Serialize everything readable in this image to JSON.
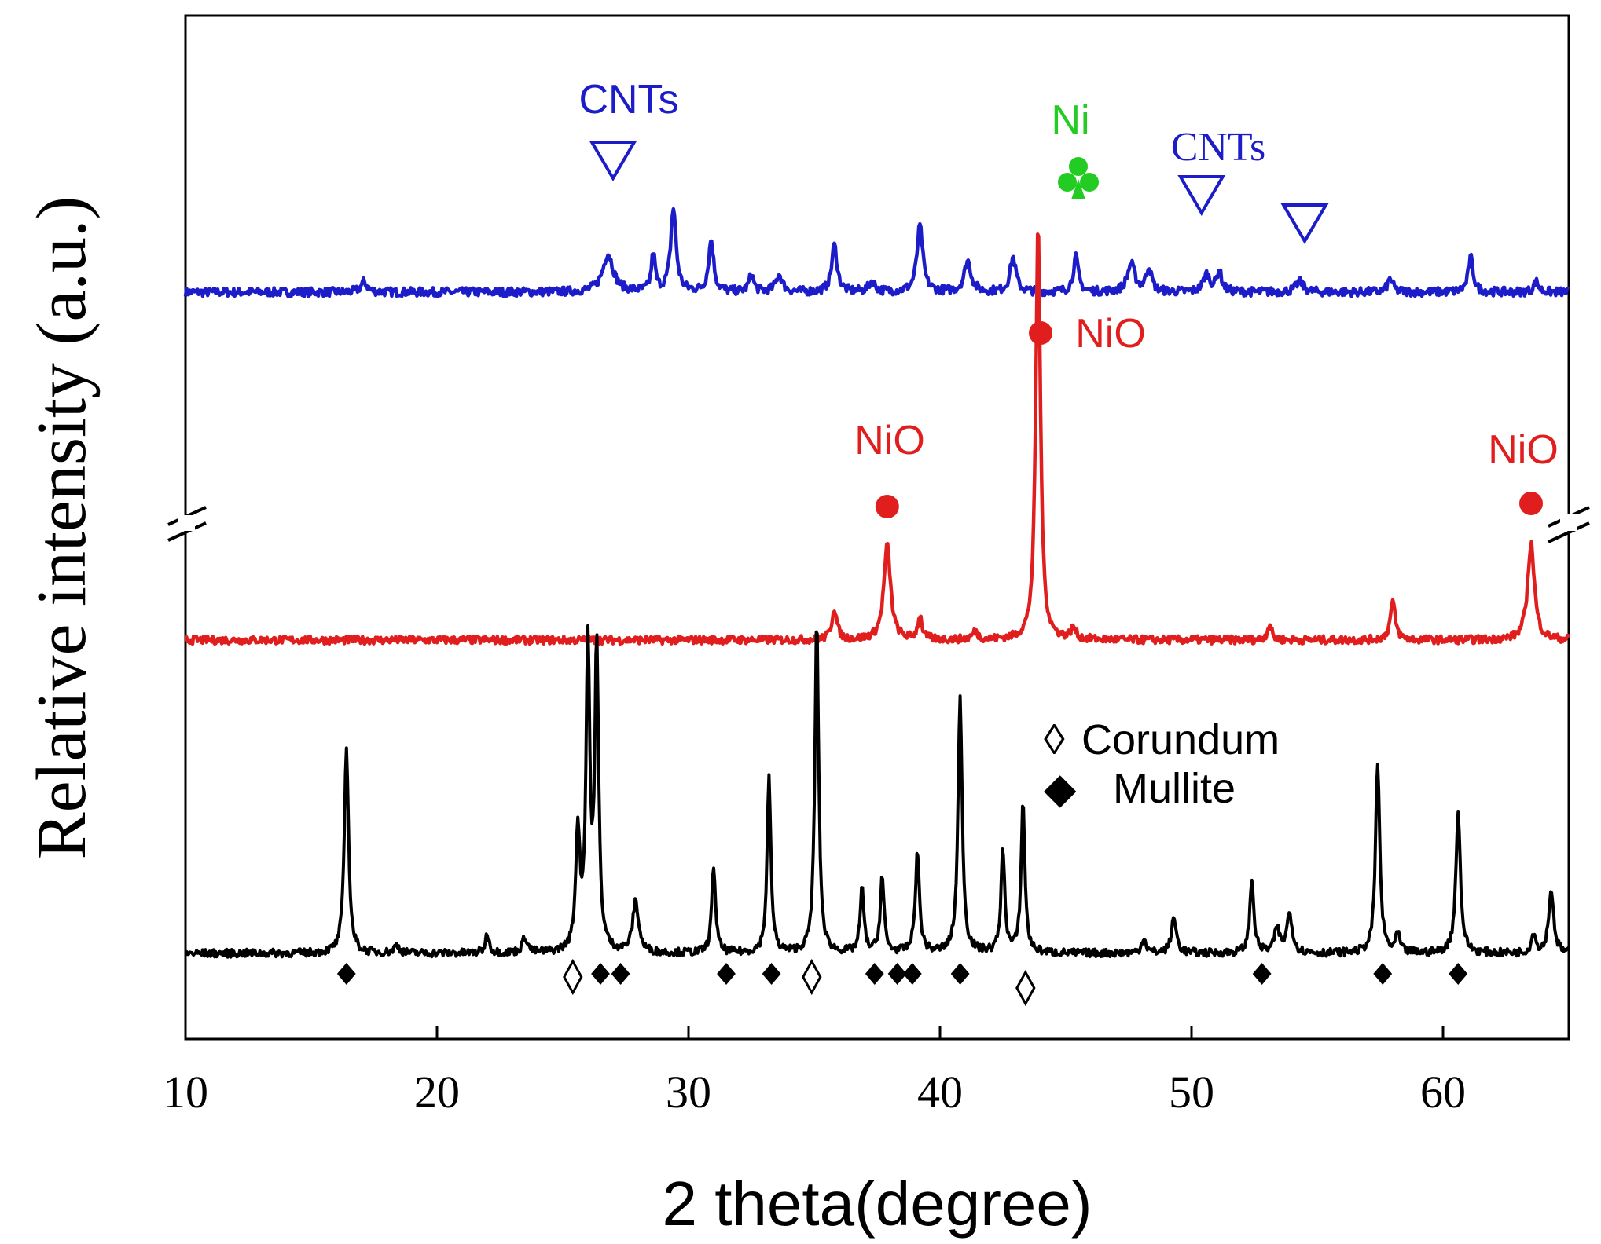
{
  "chart_data": {
    "type": "line",
    "title": "",
    "xlabel": "2 theta(degree)",
    "ylabel": "Relative intensity (a.u.)",
    "xlim": [
      10,
      65
    ],
    "xticks": [
      10,
      20,
      30,
      40,
      50,
      60
    ],
    "y_axis_break": true,
    "colors": {
      "blue": "#1c1cc8",
      "red": "#e01e1e",
      "black": "#000000",
      "green": "#22cc22"
    },
    "series": [
      {
        "name": "top",
        "color": "#1c1cc8",
        "baseline": 0,
        "peaks": [
          [
            17.1,
            0.06,
            0.15
          ],
          [
            26.8,
            0.22,
            0.25
          ],
          [
            28.6,
            0.22,
            0.09
          ],
          [
            29.4,
            0.48,
            0.13
          ],
          [
            30.9,
            0.3,
            0.12
          ],
          [
            32.5,
            0.1,
            0.11
          ],
          [
            33.6,
            0.1,
            0.15
          ],
          [
            35.8,
            0.27,
            0.13
          ],
          [
            37.3,
            0.06,
            0.15
          ],
          [
            39.2,
            0.38,
            0.14
          ],
          [
            41.1,
            0.18,
            0.16
          ],
          [
            42.9,
            0.2,
            0.14
          ],
          [
            45.4,
            0.2,
            0.12
          ],
          [
            47.6,
            0.16,
            0.18
          ],
          [
            48.3,
            0.14,
            0.13
          ],
          [
            50.6,
            0.1,
            0.16
          ],
          [
            51.1,
            0.12,
            0.12
          ],
          [
            54.3,
            0.06,
            0.18
          ],
          [
            57.9,
            0.08,
            0.12
          ],
          [
            61.1,
            0.2,
            0.12
          ],
          [
            63.7,
            0.06,
            0.12
          ]
        ]
      },
      {
        "name": "middle",
        "color": "#e01e1e",
        "baseline": 0,
        "peaks": [
          [
            35.8,
            0.2,
            0.12
          ],
          [
            37.9,
            0.6,
            0.16
          ],
          [
            39.2,
            0.15,
            0.1
          ],
          [
            41.4,
            0.05,
            0.13
          ],
          [
            43.9,
            2.65,
            0.11
          ],
          [
            45.3,
            0.07,
            0.12
          ],
          [
            53.1,
            0.1,
            0.1
          ],
          [
            58.0,
            0.24,
            0.12
          ],
          [
            63.5,
            0.62,
            0.16
          ]
        ]
      },
      {
        "name": "bottom",
        "color": "#000000",
        "baseline": 0,
        "peaks": [
          [
            16.4,
            1.3,
            0.1
          ],
          [
            18.4,
            0.05,
            0.12
          ],
          [
            22.0,
            0.12,
            0.09
          ],
          [
            23.5,
            0.1,
            0.12
          ],
          [
            25.6,
            0.75,
            0.1
          ],
          [
            26.0,
            1.9,
            0.09
          ],
          [
            26.35,
            1.9,
            0.09
          ],
          [
            27.9,
            0.32,
            0.14
          ],
          [
            31.0,
            0.55,
            0.09
          ],
          [
            33.2,
            1.1,
            0.09
          ],
          [
            35.1,
            2.1,
            0.09
          ],
          [
            36.9,
            0.4,
            0.09
          ],
          [
            37.7,
            0.48,
            0.09
          ],
          [
            39.1,
            0.62,
            0.1
          ],
          [
            40.8,
            1.6,
            0.1
          ],
          [
            42.5,
            0.65,
            0.09
          ],
          [
            43.3,
            0.95,
            0.09
          ],
          [
            48.1,
            0.1,
            0.1
          ],
          [
            49.3,
            0.22,
            0.12
          ],
          [
            52.4,
            0.45,
            0.1
          ],
          [
            53.4,
            0.15,
            0.12
          ],
          [
            53.9,
            0.25,
            0.13
          ],
          [
            57.4,
            1.2,
            0.1
          ],
          [
            58.2,
            0.12,
            0.09
          ],
          [
            60.6,
            0.88,
            0.11
          ],
          [
            63.6,
            0.12,
            0.1
          ],
          [
            64.3,
            0.4,
            0.12
          ]
        ]
      }
    ],
    "annotations": [
      {
        "label": "CNTs",
        "color": "#1c1cc8",
        "x": 27.0,
        "symbol": "open-triangle-down",
        "font": "sans"
      },
      {
        "label": "Ni",
        "color": "#22cc22",
        "x": 45.5,
        "symbol": "club",
        "font": "sans"
      },
      {
        "label": "CNTs",
        "color": "#1c1cc8",
        "x": 50.4,
        "symbol": "open-triangle-down",
        "font": "serif"
      },
      {
        "label": "",
        "color": "#1c1cc8",
        "x": 54.5,
        "symbol": "open-triangle-down",
        "font": "serif"
      },
      {
        "label": "NiO",
        "color": "#e01e1e",
        "x": 44.0,
        "symbol": "filled-circle",
        "font": "sans"
      },
      {
        "label": "NiO",
        "color": "#e01e1e",
        "x": 37.9,
        "symbol": "filled-circle",
        "font": "sans"
      },
      {
        "label": "NiO",
        "color": "#e01e1e",
        "x": 63.5,
        "symbol": "filled-circle",
        "font": "sans"
      }
    ],
    "phase_markers": {
      "corundum_x": [
        25.4,
        34.9,
        43.4
      ],
      "mullite_x": [
        16.4,
        26.5,
        27.3,
        31.5,
        33.3,
        37.4,
        38.3,
        38.9,
        40.8,
        52.8,
        57.6,
        60.6
      ]
    },
    "legend": {
      "position": "center-right",
      "items": [
        {
          "symbol": "◊",
          "label": "Corundum"
        },
        {
          "symbol": "◆",
          "label": "Mullite"
        }
      ]
    }
  }
}
